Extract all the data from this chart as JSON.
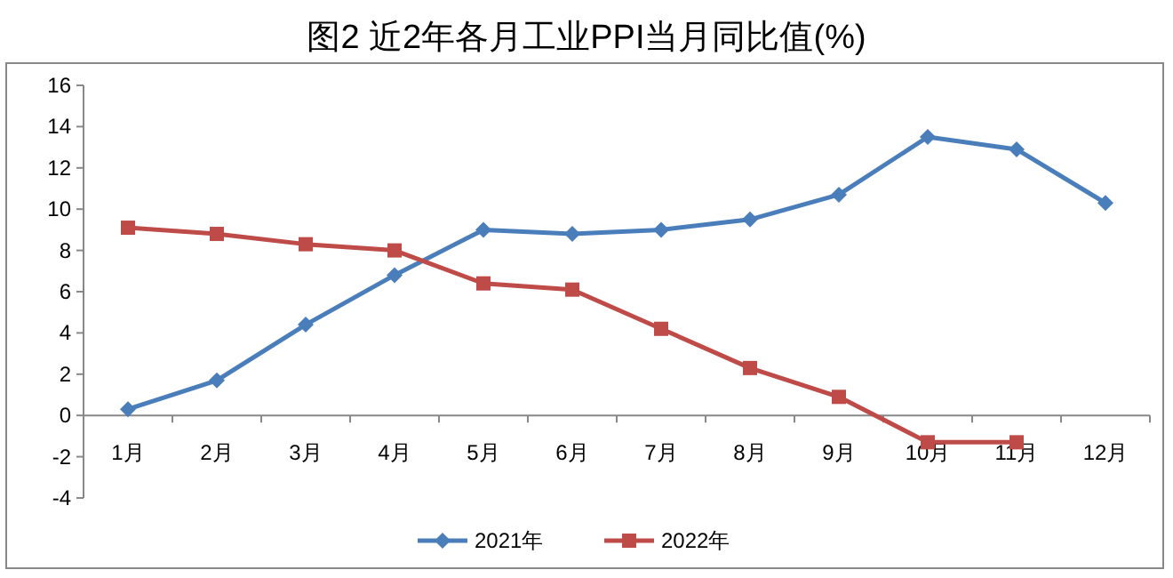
{
  "chart_data": {
    "type": "line",
    "title": "图2 近2年各月工业PPI当月同比值(%)",
    "categories": [
      "1月",
      "2月",
      "3月",
      "4月",
      "5月",
      "6月",
      "7月",
      "8月",
      "9月",
      "10月",
      "11月",
      "12月"
    ],
    "series": [
      {
        "name": "2021年",
        "color": "#4a7ebb",
        "marker": "diamond",
        "values": [
          0.3,
          1.7,
          4.4,
          6.8,
          9.0,
          8.8,
          9.0,
          9.5,
          10.7,
          13.5,
          12.9,
          10.3
        ]
      },
      {
        "name": "2022年",
        "color": "#be4b48",
        "marker": "square",
        "values": [
          9.1,
          8.8,
          8.3,
          8.0,
          6.4,
          6.1,
          4.2,
          2.3,
          0.9,
          -1.3,
          -1.3,
          null
        ]
      }
    ],
    "ylim": [
      -4,
      16
    ],
    "yticks": [
      -4,
      -2,
      0,
      2,
      4,
      6,
      8,
      10,
      12,
      14,
      16
    ],
    "grid": false,
    "legend": "bottom"
  }
}
